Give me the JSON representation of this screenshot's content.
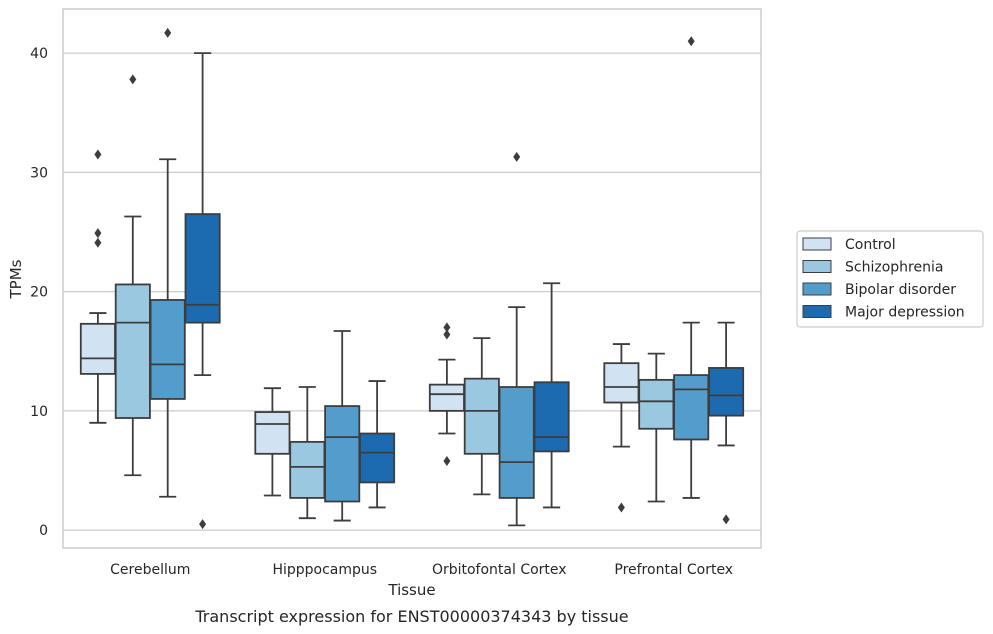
{
  "caption": "Transcript expression for ENST00000374343 by tissue",
  "chart_data": {
    "type": "box",
    "xlabel": "Tissue",
    "ylabel": "TPMs",
    "ylim": [
      -1.5,
      43.7
    ],
    "yticks": [
      0,
      10,
      20,
      30,
      40
    ],
    "grid": "horizontal",
    "legend_position": "right",
    "categories": [
      "Cerebellum",
      "Hipppocampus",
      "Orbitofontal Cortex",
      "Prefrontal Cortex"
    ],
    "series": [
      {
        "name": "Control",
        "color": "#d1e2f2",
        "boxes": [
          {
            "whisker_low": 9.0,
            "q1": 13.1,
            "median": 14.4,
            "q3": 17.3,
            "whisker_high": 18.2,
            "outliers": [
              24.1,
              24.9,
              31.5
            ]
          },
          {
            "whisker_low": 2.9,
            "q1": 6.4,
            "median": 8.9,
            "q3": 9.9,
            "whisker_high": 11.9,
            "outliers": []
          },
          {
            "whisker_low": 8.1,
            "q1": 10.0,
            "median": 11.4,
            "q3": 12.2,
            "whisker_high": 14.3,
            "outliers": [
              5.8,
              16.4,
              17.0
            ]
          },
          {
            "whisker_low": 7.0,
            "q1": 10.7,
            "median": 12.0,
            "q3": 14.0,
            "whisker_high": 15.6,
            "outliers": [
              1.9
            ]
          }
        ]
      },
      {
        "name": "Schizophrenia",
        "color": "#9ac8e0",
        "boxes": [
          {
            "whisker_low": 4.6,
            "q1": 9.4,
            "median": 17.4,
            "q3": 20.6,
            "whisker_high": 26.3,
            "outliers": [
              37.8
            ]
          },
          {
            "whisker_low": 1.0,
            "q1": 2.7,
            "median": 5.3,
            "q3": 7.4,
            "whisker_high": 12.0,
            "outliers": []
          },
          {
            "whisker_low": 3.0,
            "q1": 6.4,
            "median": 10.0,
            "q3": 12.7,
            "whisker_high": 16.1,
            "outliers": []
          },
          {
            "whisker_low": 2.4,
            "q1": 8.5,
            "median": 10.8,
            "q3": 12.6,
            "whisker_high": 14.8,
            "outliers": []
          }
        ]
      },
      {
        "name": "Bipolar disorder",
        "color": "#529dcc",
        "boxes": [
          {
            "whisker_low": 2.8,
            "q1": 11.0,
            "median": 13.9,
            "q3": 19.3,
            "whisker_high": 31.1,
            "outliers": [
              41.7
            ]
          },
          {
            "whisker_low": 0.8,
            "q1": 2.4,
            "median": 7.8,
            "q3": 10.4,
            "whisker_high": 16.7,
            "outliers": []
          },
          {
            "whisker_low": 0.4,
            "q1": 2.7,
            "median": 5.7,
            "q3": 12.0,
            "whisker_high": 18.7,
            "outliers": [
              31.3
            ]
          },
          {
            "whisker_low": 2.7,
            "q1": 7.6,
            "median": 11.8,
            "q3": 13.0,
            "whisker_high": 17.4,
            "outliers": [
              41.0
            ]
          }
        ]
      },
      {
        "name": "Major depression",
        "color": "#1c6aaf",
        "boxes": [
          {
            "whisker_low": 13.0,
            "q1": 17.4,
            "median": 18.9,
            "q3": 26.5,
            "whisker_high": 40.0,
            "outliers": [
              0.5
            ]
          },
          {
            "whisker_low": 1.9,
            "q1": 4.0,
            "median": 6.5,
            "q3": 8.1,
            "whisker_high": 12.5,
            "outliers": []
          },
          {
            "whisker_low": 1.9,
            "q1": 6.6,
            "median": 7.8,
            "q3": 12.4,
            "whisker_high": 20.7,
            "outliers": []
          },
          {
            "whisker_low": 7.1,
            "q1": 9.6,
            "median": 11.3,
            "q3": 13.6,
            "whisker_high": 17.4,
            "outliers": [
              0.9
            ]
          }
        ]
      }
    ]
  }
}
